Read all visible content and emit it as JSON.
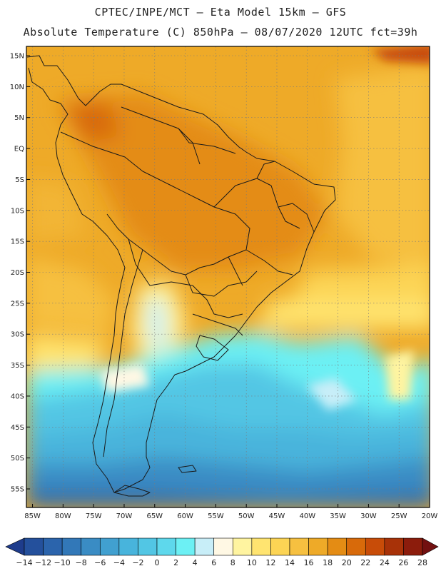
{
  "header": {
    "line1": "CPTEC/INPE/MCT –  Eta Model 15km – GFS",
    "line2": "Absolute Temperature (C) 850hPa – 08/07/2020 12UTC fct=39h"
  },
  "map": {
    "lat_labels": [
      "15N",
      "10N",
      "5N",
      "EQ",
      "5S",
      "10S",
      "15S",
      "20S",
      "25S",
      "30S",
      "35S",
      "40S",
      "45S",
      "50S",
      "55S"
    ],
    "lon_labels": [
      "85W",
      "80W",
      "75W",
      "70W",
      "65W",
      "60W",
      "55W",
      "50W",
      "45W",
      "40W",
      "35W",
      "30W",
      "25W",
      "20W"
    ],
    "lat_values": [
      15,
      10,
      5,
      0,
      -5,
      -10,
      -15,
      -20,
      -25,
      -30,
      -35,
      -40,
      -45,
      -50,
      -55
    ],
    "lon_values": [
      -85,
      -80,
      -75,
      -70,
      -65,
      -60,
      -55,
      -50,
      -45,
      -40,
      -35,
      -30,
      -25,
      -20
    ],
    "lat_range": [
      -58,
      16.5
    ],
    "lon_range": [
      -86,
      -20
    ],
    "variable": "Absolute Temperature (C) 850hPa",
    "units": "C"
  },
  "colorbar": {
    "labels": [
      "-14",
      "-12",
      "-10",
      "-8",
      "-6",
      "-4",
      "-2",
      "0",
      "2",
      "4",
      "6",
      "8",
      "10",
      "12",
      "14",
      "16",
      "18",
      "20",
      "22",
      "24",
      "26",
      "28"
    ],
    "colors": [
      "#1e3c8c",
      "#24509c",
      "#2b64ac",
      "#3278b8",
      "#3a8cc4",
      "#41a0d0",
      "#48b4dc",
      "#52c6e4",
      "#5ed8ec",
      "#6cf0f4",
      "#c8eef8",
      "#fff8e4",
      "#fff4a0",
      "#ffe470",
      "#fcd454",
      "#f6c040",
      "#eeaa28",
      "#e48c14",
      "#d86a0a",
      "#c84c08",
      "#a83208",
      "#8c1c0c",
      "#721010"
    ]
  }
}
